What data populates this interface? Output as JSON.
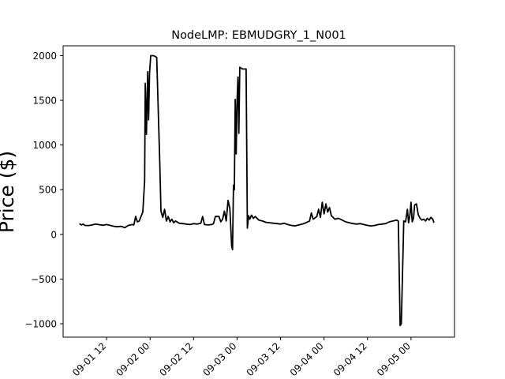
{
  "chart_data": {
    "type": "line",
    "title": "NodeLMP: EBMUDGRY_1_N001",
    "xlabel": "",
    "ylabel": "Price ($)",
    "xlim": [
      "2022-09-01 00:00",
      "2022-09-05 12:00"
    ],
    "ylim": [
      -1150,
      2110
    ],
    "x_ticks": [
      {
        "x": "2022-09-01 12:00",
        "label": "09-01 12"
      },
      {
        "x": "2022-09-02 00:00",
        "label": "09-02 00"
      },
      {
        "x": "2022-09-02 12:00",
        "label": "09-02 12"
      },
      {
        "x": "2022-09-03 00:00",
        "label": "09-03 00"
      },
      {
        "x": "2022-09-03 12:00",
        "label": "09-03 12"
      },
      {
        "x": "2022-09-04 00:00",
        "label": "09-04 00"
      },
      {
        "x": "2022-09-04 12:00",
        "label": "09-04 12"
      },
      {
        "x": "2022-09-05 00:00",
        "label": "09-05 00"
      }
    ],
    "y_ticks": [
      {
        "y": 2000,
        "label": "2000"
      },
      {
        "y": 1500,
        "label": "1500"
      },
      {
        "y": 1000,
        "label": "1000"
      },
      {
        "y": 500,
        "label": "500"
      },
      {
        "y": 0,
        "label": "0"
      },
      {
        "y": -500,
        "label": "−500"
      },
      {
        "y": -1000,
        "label": "−1000"
      }
    ],
    "grid": false,
    "legend": null,
    "line_color": "#000000",
    "series": [
      {
        "points": [
          [
            "2022-09-01 04:30",
            120
          ],
          [
            "2022-09-01 05:00",
            105
          ],
          [
            "2022-09-01 05:30",
            115
          ],
          [
            "2022-09-01 06:00",
            100
          ],
          [
            "2022-09-01 07:00",
            98
          ],
          [
            "2022-09-01 08:00",
            105
          ],
          [
            "2022-09-01 09:00",
            115
          ],
          [
            "2022-09-01 10:00",
            108
          ],
          [
            "2022-09-01 11:00",
            102
          ],
          [
            "2022-09-01 12:00",
            110
          ],
          [
            "2022-09-01 13:00",
            100
          ],
          [
            "2022-09-01 14:00",
            90
          ],
          [
            "2022-09-01 15:00",
            85
          ],
          [
            "2022-09-01 16:00",
            90
          ],
          [
            "2022-09-01 17:00",
            75
          ],
          [
            "2022-09-01 18:00",
            100
          ],
          [
            "2022-09-01 19:00",
            110
          ],
          [
            "2022-09-01 19:30",
            105
          ],
          [
            "2022-09-01 20:00",
            200
          ],
          [
            "2022-09-01 20:30",
            140
          ],
          [
            "2022-09-01 21:00",
            150
          ],
          [
            "2022-09-01 22:00",
            250
          ],
          [
            "2022-09-01 22:30",
            600
          ],
          [
            "2022-09-01 22:40",
            1690
          ],
          [
            "2022-09-01 23:00",
            1120
          ],
          [
            "2022-09-01 23:20",
            1820
          ],
          [
            "2022-09-01 23:35",
            1280
          ],
          [
            "2022-09-01 23:50",
            1800
          ],
          [
            "2022-09-02 00:10",
            2000
          ],
          [
            "2022-09-02 01:00",
            2000
          ],
          [
            "2022-09-02 01:50",
            1980
          ],
          [
            "2022-09-02 02:40",
            800
          ],
          [
            "2022-09-02 03:00",
            260
          ],
          [
            "2022-09-02 03:30",
            190
          ],
          [
            "2022-09-02 04:00",
            280
          ],
          [
            "2022-09-02 04:30",
            150
          ],
          [
            "2022-09-02 05:00",
            200
          ],
          [
            "2022-09-02 05:30",
            140
          ],
          [
            "2022-09-02 06:00",
            170
          ],
          [
            "2022-09-02 06:30",
            130
          ],
          [
            "2022-09-02 07:00",
            150
          ],
          [
            "2022-09-02 08:00",
            125
          ],
          [
            "2022-09-02 09:00",
            120
          ],
          [
            "2022-09-02 10:00",
            115
          ],
          [
            "2022-09-02 11:00",
            110
          ],
          [
            "2022-09-02 12:00",
            120
          ],
          [
            "2022-09-02 13:00",
            115
          ],
          [
            "2022-09-02 14:00",
            125
          ],
          [
            "2022-09-02 14:30",
            200
          ],
          [
            "2022-09-02 15:00",
            110
          ],
          [
            "2022-09-02 16:00",
            105
          ],
          [
            "2022-09-02 17:00",
            110
          ],
          [
            "2022-09-02 17:30",
            120
          ],
          [
            "2022-09-02 18:00",
            200
          ],
          [
            "2022-09-02 19:00",
            200
          ],
          [
            "2022-09-02 19:30",
            140
          ],
          [
            "2022-09-02 20:00",
            170
          ],
          [
            "2022-09-02 20:30",
            260
          ],
          [
            "2022-09-02 21:00",
            150
          ],
          [
            "2022-09-02 21:30",
            380
          ],
          [
            "2022-09-02 22:00",
            290
          ],
          [
            "2022-09-02 22:30",
            -130
          ],
          [
            "2022-09-02 22:45",
            -170
          ],
          [
            "2022-09-02 23:00",
            550
          ],
          [
            "2022-09-02 23:15",
            500
          ],
          [
            "2022-09-02 23:30",
            1510
          ],
          [
            "2022-09-02 23:45",
            900
          ],
          [
            "2022-09-03 00:00",
            1480
          ],
          [
            "2022-09-03 00:15",
            1760
          ],
          [
            "2022-09-03 00:30",
            1130
          ],
          [
            "2022-09-03 00:45",
            1870
          ],
          [
            "2022-09-03 01:30",
            1850
          ],
          [
            "2022-09-03 02:30",
            1850
          ],
          [
            "2022-09-03 02:50",
            70
          ],
          [
            "2022-09-03 03:10",
            210
          ],
          [
            "2022-09-03 03:30",
            170
          ],
          [
            "2022-09-03 04:00",
            215
          ],
          [
            "2022-09-03 04:30",
            180
          ],
          [
            "2022-09-03 05:00",
            200
          ],
          [
            "2022-09-03 06:00",
            160
          ],
          [
            "2022-09-03 07:00",
            150
          ],
          [
            "2022-09-03 08:00",
            135
          ],
          [
            "2022-09-03 09:00",
            130
          ],
          [
            "2022-09-03 10:00",
            125
          ],
          [
            "2022-09-03 11:00",
            120
          ],
          [
            "2022-09-03 12:00",
            115
          ],
          [
            "2022-09-03 13:00",
            125
          ],
          [
            "2022-09-03 14:00",
            110
          ],
          [
            "2022-09-03 15:00",
            100
          ],
          [
            "2022-09-03 16:00",
            95
          ],
          [
            "2022-09-03 17:00",
            105
          ],
          [
            "2022-09-03 18:00",
            115
          ],
          [
            "2022-09-03 19:00",
            130
          ],
          [
            "2022-09-03 20:00",
            150
          ],
          [
            "2022-09-03 20:30",
            240
          ],
          [
            "2022-09-03 21:00",
            170
          ],
          [
            "2022-09-03 22:00",
            200
          ],
          [
            "2022-09-03 22:30",
            280
          ],
          [
            "2022-09-03 23:00",
            190
          ],
          [
            "2022-09-03 23:30",
            360
          ],
          [
            "2022-09-04 00:00",
            230
          ],
          [
            "2022-09-04 00:30",
            340
          ],
          [
            "2022-09-04 01:00",
            250
          ],
          [
            "2022-09-04 01:30",
            300
          ],
          [
            "2022-09-04 02:00",
            210
          ],
          [
            "2022-09-04 02:30",
            190
          ],
          [
            "2022-09-04 03:00",
            170
          ],
          [
            "2022-09-04 04:00",
            180
          ],
          [
            "2022-09-04 05:00",
            160
          ],
          [
            "2022-09-04 06:00",
            140
          ],
          [
            "2022-09-04 07:00",
            130
          ],
          [
            "2022-09-04 08:00",
            120
          ],
          [
            "2022-09-04 09:00",
            115
          ],
          [
            "2022-09-04 10:00",
            120
          ],
          [
            "2022-09-04 11:00",
            110
          ],
          [
            "2022-09-04 12:00",
            100
          ],
          [
            "2022-09-04 13:00",
            95
          ],
          [
            "2022-09-04 14:00",
            100
          ],
          [
            "2022-09-04 15:00",
            110
          ],
          [
            "2022-09-04 16:00",
            115
          ],
          [
            "2022-09-04 17:00",
            120
          ],
          [
            "2022-09-04 18:00",
            140
          ],
          [
            "2022-09-04 19:00",
            150
          ],
          [
            "2022-09-04 20:00",
            160
          ],
          [
            "2022-09-04 20:30",
            150
          ],
          [
            "2022-09-04 21:00",
            -1020
          ],
          [
            "2022-09-04 21:20",
            -1000
          ],
          [
            "2022-09-04 22:00",
            150
          ],
          [
            "2022-09-04 22:30",
            140
          ],
          [
            "2022-09-04 23:00",
            280
          ],
          [
            "2022-09-04 23:20",
            130
          ],
          [
            "2022-09-04 23:40",
            210
          ],
          [
            "2022-09-05 00:00",
            360
          ],
          [
            "2022-09-05 00:20",
            140
          ],
          [
            "2022-09-05 00:40",
            180
          ],
          [
            "2022-09-05 01:00",
            330
          ],
          [
            "2022-09-05 01:30",
            340
          ],
          [
            "2022-09-05 02:00",
            220
          ],
          [
            "2022-09-05 02:30",
            180
          ],
          [
            "2022-09-05 03:00",
            160
          ],
          [
            "2022-09-05 03:30",
            170
          ],
          [
            "2022-09-05 04:00",
            150
          ],
          [
            "2022-09-05 04:30",
            180
          ],
          [
            "2022-09-05 05:00",
            160
          ],
          [
            "2022-09-05 05:30",
            190
          ],
          [
            "2022-09-05 06:00",
            170
          ],
          [
            "2022-09-05 06:20",
            130
          ]
        ]
      }
    ]
  }
}
